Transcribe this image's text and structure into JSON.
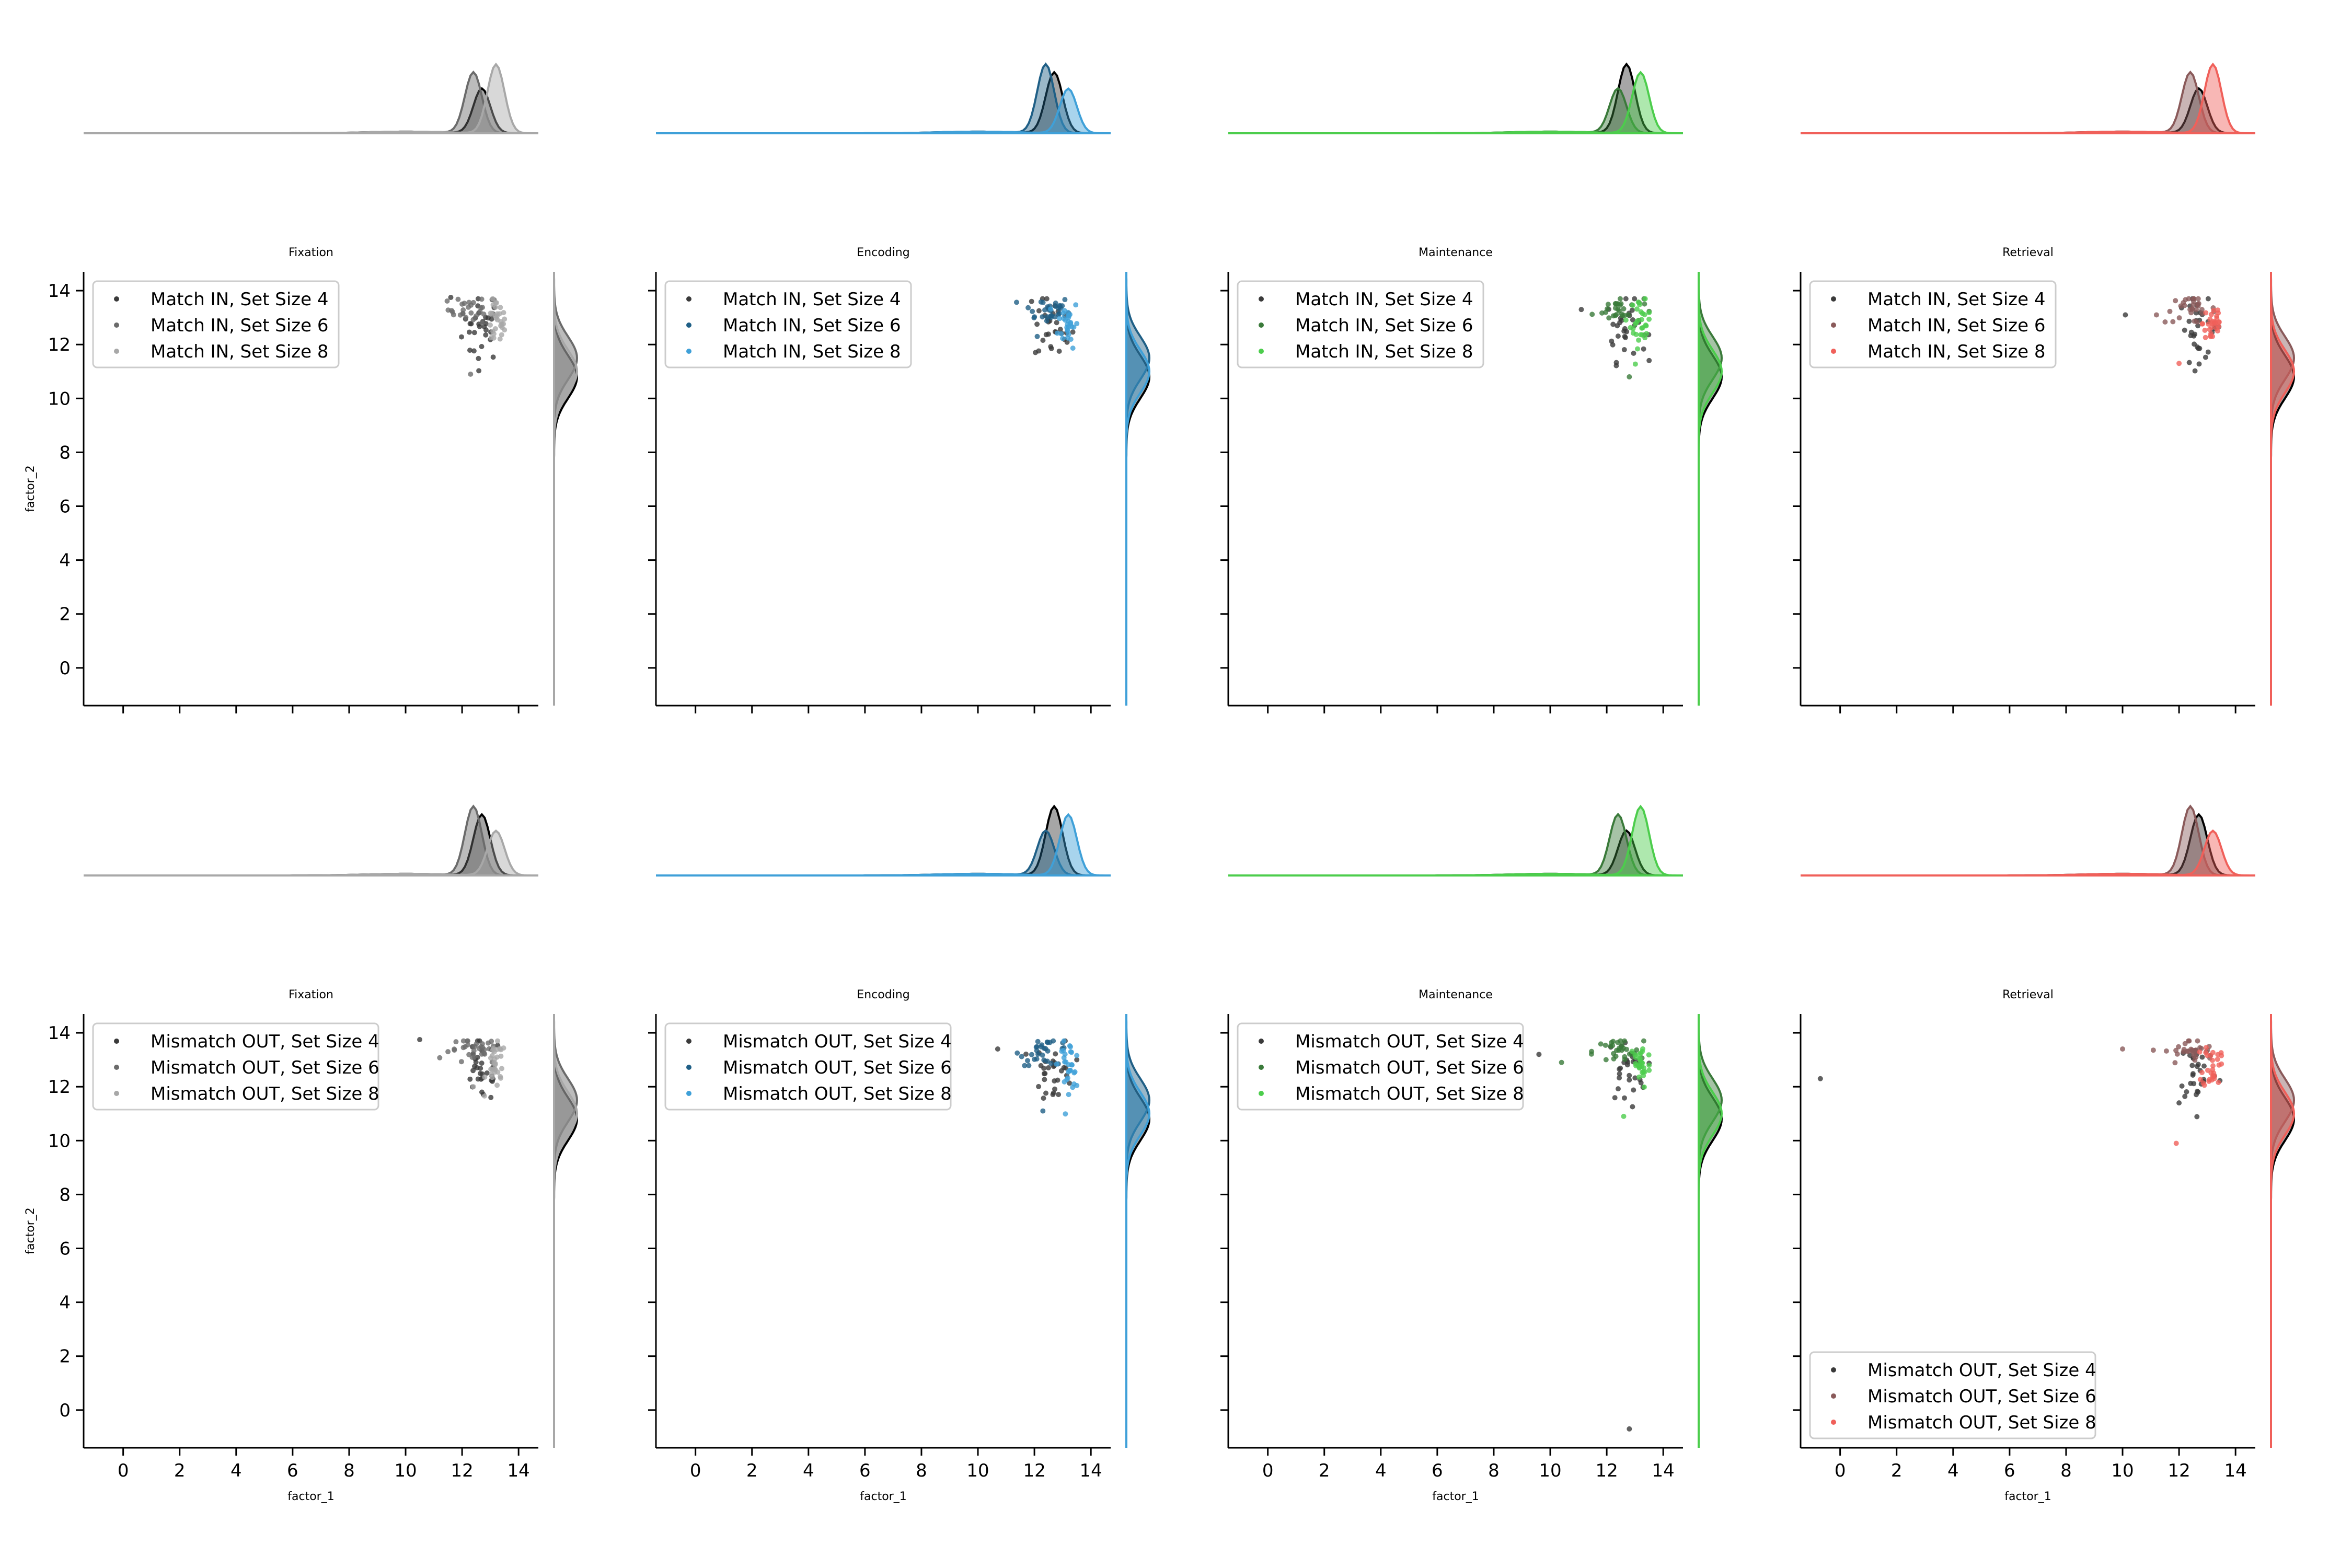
{
  "chart_data": {
    "type": "scatter",
    "x_label": "factor_1",
    "y_label": "factor_2",
    "xlim": [
      -1.4,
      14.7
    ],
    "ylim": [
      -1.4,
      14.7
    ],
    "x_ticks": [
      0,
      2,
      4,
      6,
      8,
      10,
      12,
      14
    ],
    "y_ticks": [
      0,
      2,
      4,
      6,
      8,
      10,
      12,
      14
    ],
    "colors": {
      "Fixation": [
        "#3a3a3a",
        "#6b6b6b",
        "#a8a8a8"
      ],
      "Encoding": [
        "#3a3a3a",
        "#1f5f86",
        "#3fa0d8"
      ],
      "Maintenance": [
        "#3a3a3a",
        "#3a7a3a",
        "#4ccd4c"
      ],
      "Retrieval": [
        "#3a3a3a",
        "#8a5a5a",
        "#f0605a"
      ]
    },
    "panels": [
      {
        "row": 0,
        "title": "Fixation",
        "legend": [
          "Match IN, Set Size 4",
          "Match IN, Set Size 6",
          "Match IN, Set Size 8"
        ],
        "legend_position": "upper left",
        "outliers": [
          [
            11.6,
            13.75
          ],
          [
            12.3,
            10.9
          ]
        ]
      },
      {
        "row": 0,
        "title": "Encoding",
        "legend": [
          "Match IN, Set Size 4",
          "Match IN, Set Size 6",
          "Match IN, Set Size 8"
        ],
        "legend_position": "upper left",
        "outliers": [
          [
            11.9,
            13.6
          ],
          [
            12.1,
            12.3
          ]
        ]
      },
      {
        "row": 0,
        "title": "Maintenance",
        "legend": [
          "Match IN, Set Size 4",
          "Match IN, Set Size 6",
          "Match IN, Set Size 8"
        ],
        "legend_position": "upper left",
        "outliers": [
          [
            11.1,
            13.3
          ],
          [
            12.8,
            10.8
          ]
        ]
      },
      {
        "row": 0,
        "title": "Retrieval",
        "legend": [
          "Match IN, Set Size 4",
          "Match IN, Set Size 6",
          "Match IN, Set Size 8"
        ],
        "legend_position": "upper left",
        "outliers": [
          [
            10.1,
            13.1
          ],
          [
            11.2,
            13.1
          ],
          [
            12.0,
            11.3
          ]
        ]
      },
      {
        "row": 1,
        "title": "Fixation",
        "legend": [
          "Mismatch OUT, Set Size 4",
          "Mismatch OUT, Set Size 6",
          "Mismatch OUT, Set Size 8"
        ],
        "legend_position": "upper left",
        "outliers": [
          [
            10.5,
            13.75
          ],
          [
            11.5,
            13.3
          ],
          [
            12.4,
            12.0
          ],
          [
            12.7,
            11.8
          ]
        ]
      },
      {
        "row": 1,
        "title": "Encoding",
        "legend": [
          "Mismatch OUT, Set Size 4",
          "Mismatch OUT, Set Size 6",
          "Mismatch OUT, Set Size 8"
        ],
        "legend_position": "upper left",
        "outliers": [
          [
            10.7,
            13.4
          ],
          [
            12.3,
            11.1
          ]
        ]
      },
      {
        "row": 1,
        "title": "Maintenance",
        "legend": [
          "Mismatch OUT, Set Size 4",
          "Mismatch OUT, Set Size 6",
          "Mismatch OUT, Set Size 8"
        ],
        "legend_position": "upper left",
        "outliers": [
          [
            9.6,
            13.2
          ],
          [
            10.4,
            12.9
          ],
          [
            12.6,
            10.9
          ],
          [
            12.8,
            -0.7
          ]
        ]
      },
      {
        "row": 1,
        "title": "Retrieval",
        "legend": [
          "Mismatch OUT, Set Size 4",
          "Mismatch OUT, Set Size 6",
          "Mismatch OUT, Set Size 8"
        ],
        "legend_position": "lower left",
        "outliers": [
          [
            -0.7,
            12.3
          ],
          [
            10.0,
            13.4
          ],
          [
            11.9,
            9.9
          ],
          [
            12.0,
            11.4
          ]
        ]
      }
    ]
  }
}
